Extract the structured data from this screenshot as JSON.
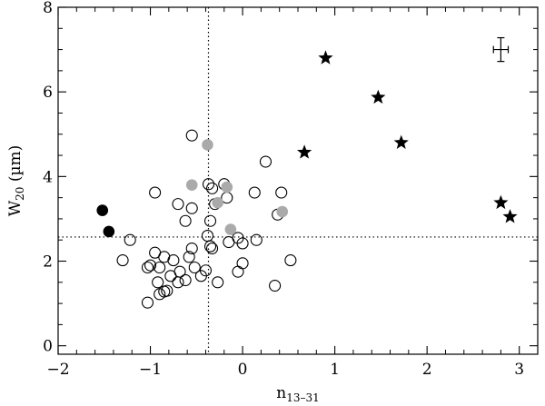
{
  "chart_data": {
    "type": "scatter",
    "title": "",
    "xlabel": "n",
    "xlabel_sub": "13–31",
    "ylabel": "W",
    "ylabel_sub": "20",
    "ylabel_unit": " (µm)",
    "xlim": [
      -2,
      3.2
    ],
    "ylim": [
      -0.2,
      8
    ],
    "xticks": [
      -2,
      -1,
      0,
      1,
      2,
      3
    ],
    "yticks": [
      0,
      2,
      4,
      6,
      8
    ],
    "x_tick_labels": [
      "−2",
      "−1",
      "0",
      "1",
      "2",
      "3"
    ],
    "y_tick_labels": [
      "0",
      "2",
      "4",
      "6",
      "8"
    ],
    "grid": false,
    "reference_lines": {
      "vertical_x": -0.37,
      "horizontal_y": 2.57
    },
    "error_bar": {
      "x": 2.8,
      "y": 7.0,
      "xerr": 0.08,
      "yerr": 0.28
    },
    "series": [
      {
        "marker": "open-circle",
        "color": "#000000",
        "points": [
          [
            -0.55,
            4.97
          ],
          [
            -0.95,
            3.62
          ],
          [
            -0.7,
            3.35
          ],
          [
            -0.55,
            3.25
          ],
          [
            -0.62,
            2.95
          ],
          [
            -0.37,
            3.82
          ],
          [
            -0.33,
            3.72
          ],
          [
            -0.2,
            3.82
          ],
          [
            -0.17,
            3.5
          ],
          [
            -0.3,
            3.35
          ],
          [
            -0.35,
            2.95
          ],
          [
            -0.38,
            2.6
          ],
          [
            -0.35,
            2.35
          ],
          [
            -0.33,
            2.3
          ],
          [
            -0.15,
            2.45
          ],
          [
            -0.05,
            2.55
          ],
          [
            0.0,
            2.42
          ],
          [
            0.15,
            2.5
          ],
          [
            0.13,
            3.62
          ],
          [
            0.25,
            4.35
          ],
          [
            0.38,
            3.1
          ],
          [
            0.42,
            3.62
          ],
          [
            -0.55,
            2.3
          ],
          [
            -0.58,
            2.1
          ],
          [
            -0.52,
            1.85
          ],
          [
            -0.75,
            2.02
          ],
          [
            -0.85,
            2.1
          ],
          [
            -0.9,
            1.85
          ],
          [
            -0.78,
            1.65
          ],
          [
            -0.62,
            1.55
          ],
          [
            -0.45,
            1.65
          ],
          [
            -0.4,
            1.78
          ],
          [
            -0.27,
            1.5
          ],
          [
            -0.05,
            1.75
          ],
          [
            0.0,
            1.95
          ],
          [
            0.52,
            2.02
          ],
          [
            0.35,
            1.42
          ],
          [
            -1.0,
            1.9
          ],
          [
            -1.03,
            1.85
          ],
          [
            -0.95,
            2.2
          ],
          [
            -1.22,
            2.5
          ],
          [
            -1.3,
            2.02
          ],
          [
            -0.92,
            1.5
          ],
          [
            -0.85,
            1.28
          ],
          [
            -0.9,
            1.22
          ],
          [
            -0.82,
            1.3
          ],
          [
            -1.03,
            1.02
          ],
          [
            -0.7,
            1.5
          ],
          [
            -0.68,
            1.75
          ]
        ]
      },
      {
        "marker": "filled-circle",
        "color": "#aaaaaa",
        "points": [
          [
            -0.38,
            4.75
          ],
          [
            -0.55,
            3.8
          ],
          [
            -0.17,
            3.75
          ],
          [
            -0.27,
            3.38
          ],
          [
            -0.13,
            2.75
          ],
          [
            0.43,
            3.17
          ]
        ]
      },
      {
        "marker": "filled-circle",
        "color": "#000000",
        "points": [
          [
            -1.52,
            3.2
          ],
          [
            -1.45,
            2.7
          ]
        ]
      },
      {
        "marker": "star",
        "color": "#000000",
        "points": [
          [
            0.9,
            6.8
          ],
          [
            1.47,
            5.87
          ],
          [
            1.72,
            4.8
          ],
          [
            0.67,
            4.57
          ],
          [
            2.8,
            3.38
          ],
          [
            2.9,
            3.05
          ]
        ]
      }
    ]
  }
}
